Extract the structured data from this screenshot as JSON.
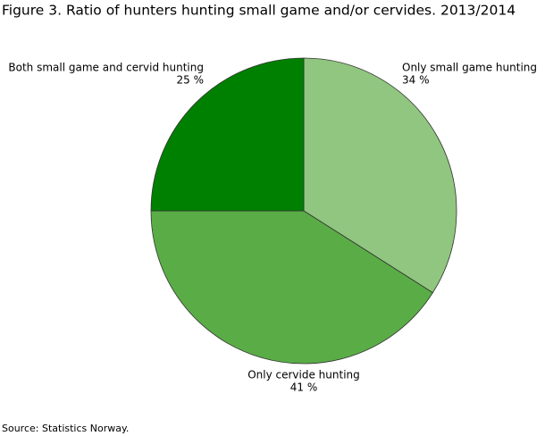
{
  "chart_data": {
    "type": "pie",
    "title": "Figure 3. Ratio of hunters hunting small game and/or cervides. 2013/2014",
    "source": "Source: Statistics Norway.",
    "categories": [
      "Only small game hunting",
      "Only cervide hunting",
      "Both small game and cervid hunting"
    ],
    "values": [
      34,
      41,
      25
    ],
    "value_labels": [
      "34 %",
      "41 %",
      "25 %"
    ],
    "colors": [
      "#90c67f",
      "#5aad46",
      "#008000"
    ]
  }
}
